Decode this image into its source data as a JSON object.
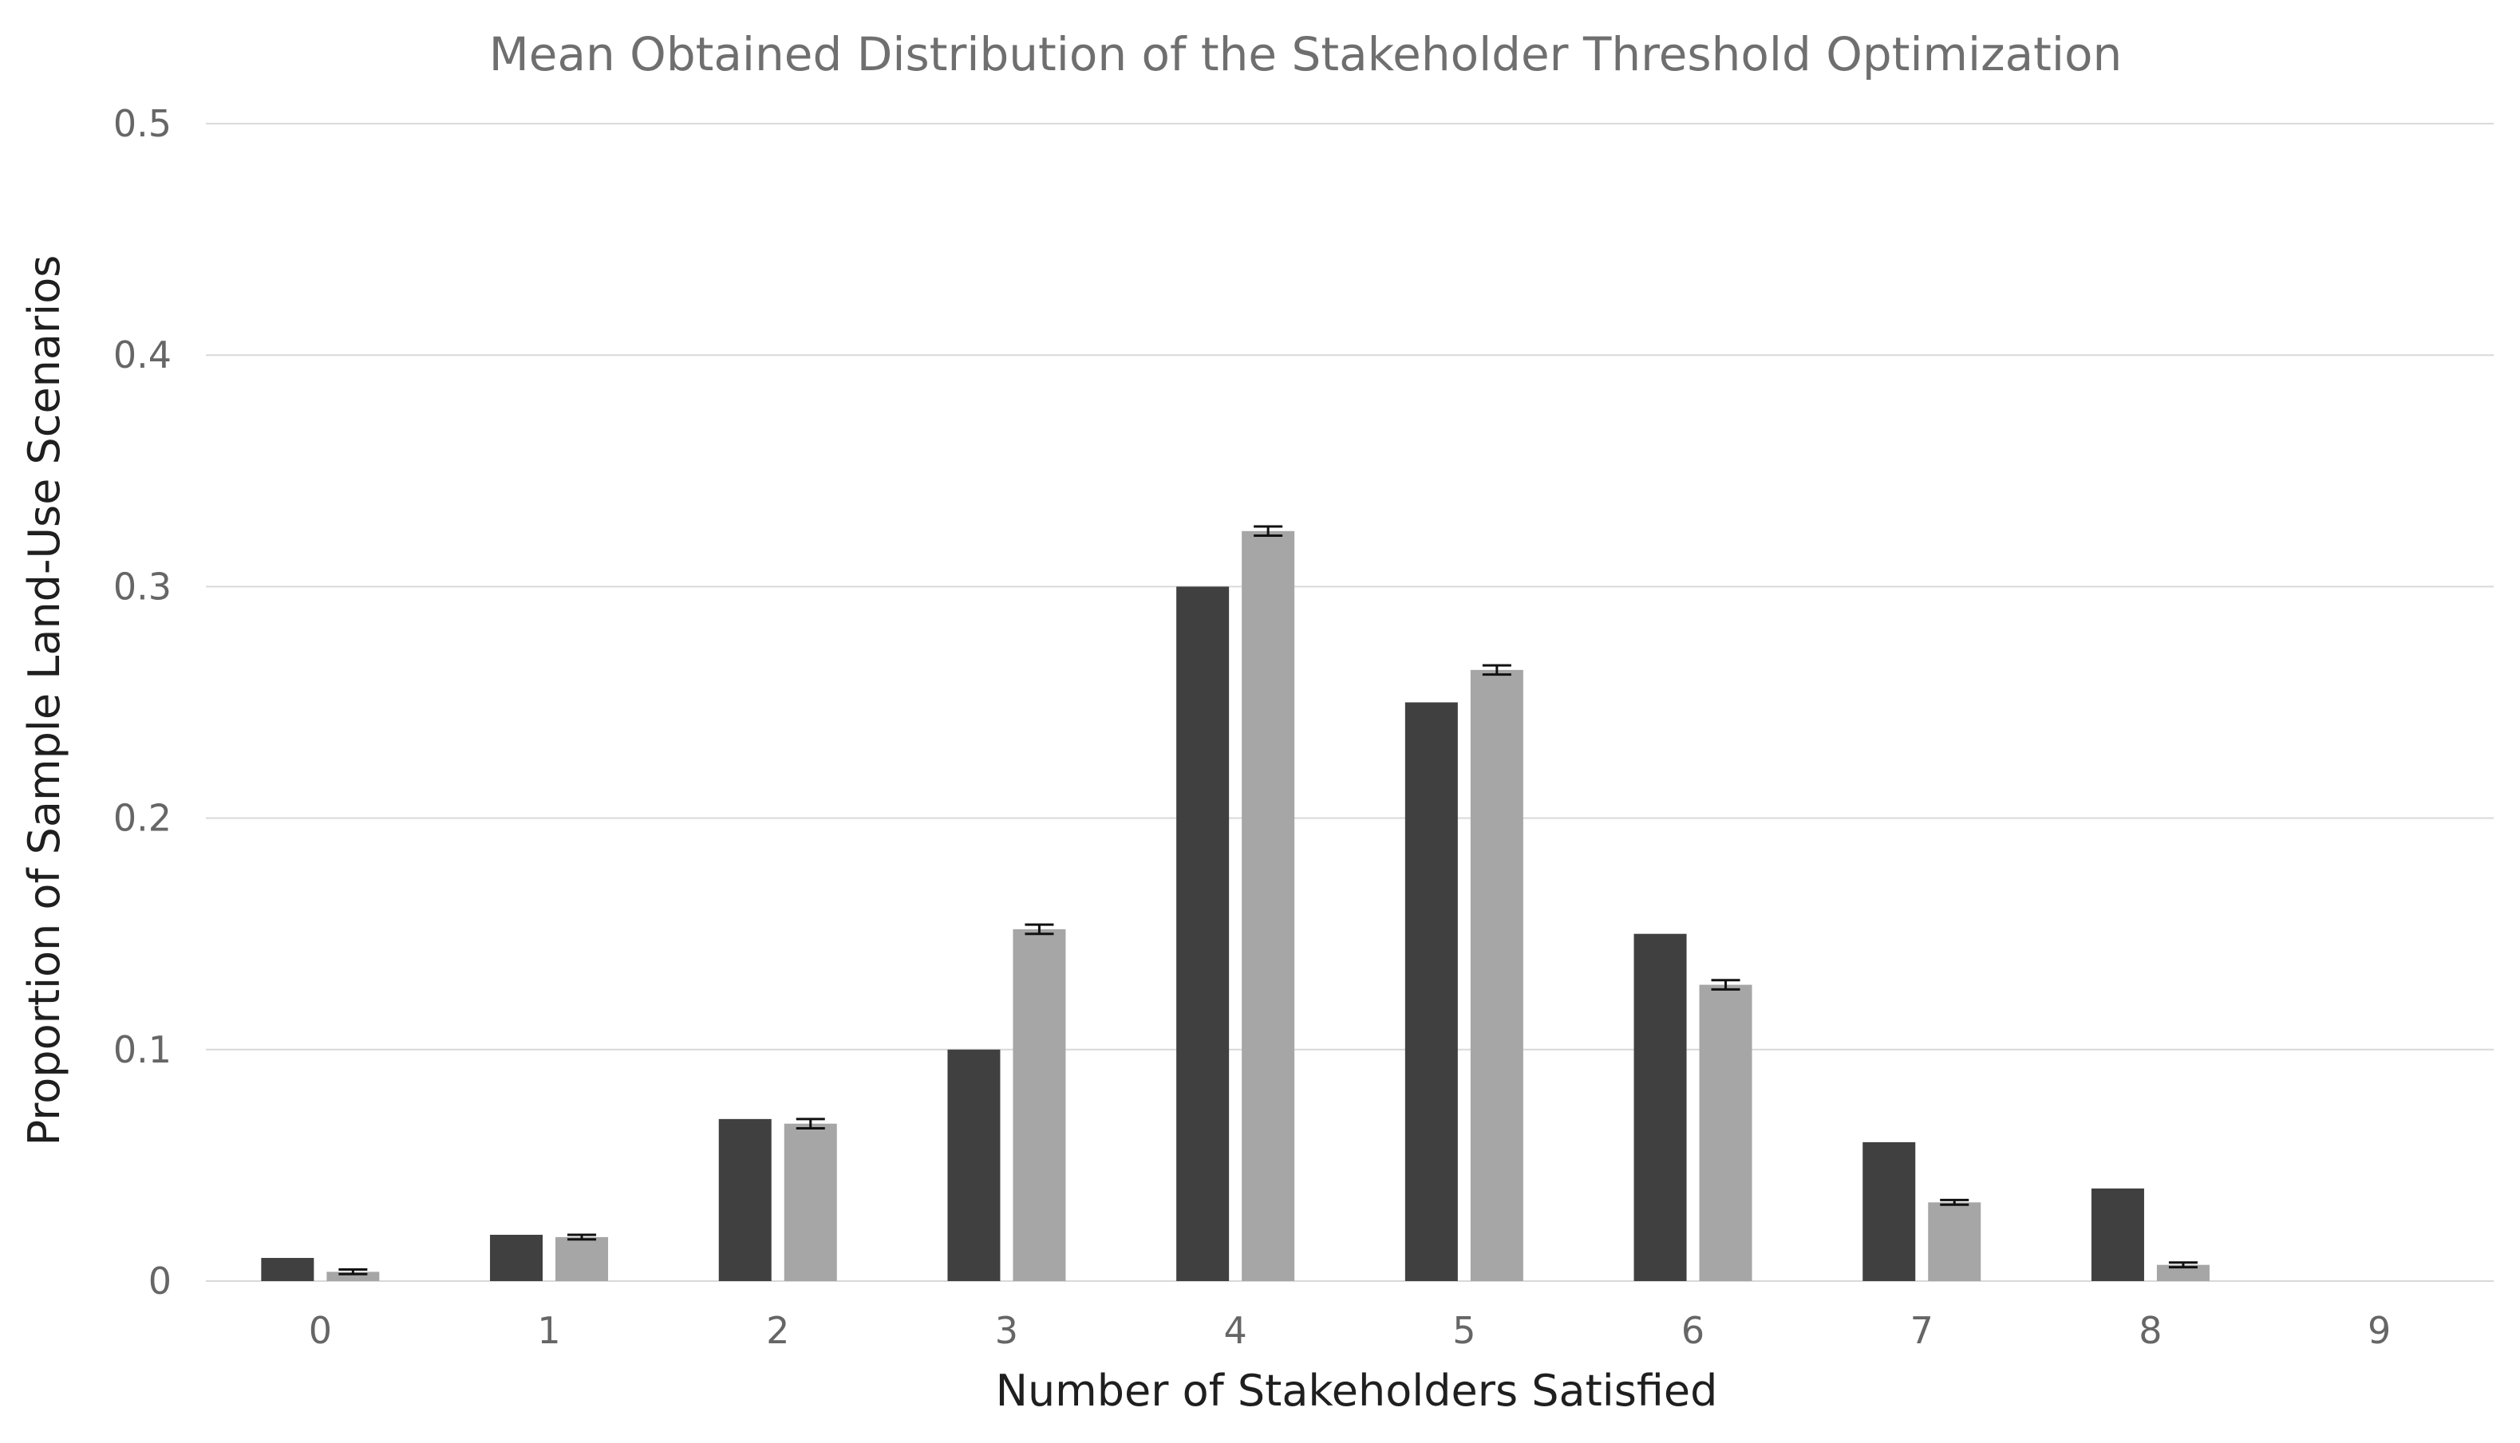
{
  "chart_data": {
    "type": "bar",
    "title": "Mean Obtained Distribution of the Stakeholder Threshold Optimization",
    "xlabel": "Number of Stakeholders Satisfied",
    "ylabel": "Proportion of Sample Land-Use Scenarios",
    "categories": [
      "0",
      "1",
      "2",
      "3",
      "4",
      "5",
      "6",
      "7",
      "8",
      "9"
    ],
    "ylim": [
      0,
      0.5
    ],
    "yticks": [
      0,
      0.1,
      0.2,
      0.3,
      0.4,
      0.5
    ],
    "ytick_labels": [
      "0",
      "0.1",
      "0.2",
      "0.3",
      "0.4",
      "0.5"
    ],
    "grid": true,
    "legend": "none",
    "series": [
      {
        "values": [
          0.01,
          0.02,
          0.07,
          0.1,
          0.3,
          0.25,
          0.15,
          0.06,
          0.04,
          0.0
        ],
        "color": "#404040"
      },
      {
        "values": [
          0.004,
          0.019,
          0.068,
          0.152,
          0.324,
          0.264,
          0.128,
          0.034,
          0.007,
          0.0
        ],
        "error": [
          0.001,
          0.001,
          0.002,
          0.002,
          0.002,
          0.002,
          0.002,
          0.001,
          0.001,
          0.0
        ],
        "color": "#a6a6a6"
      }
    ]
  }
}
